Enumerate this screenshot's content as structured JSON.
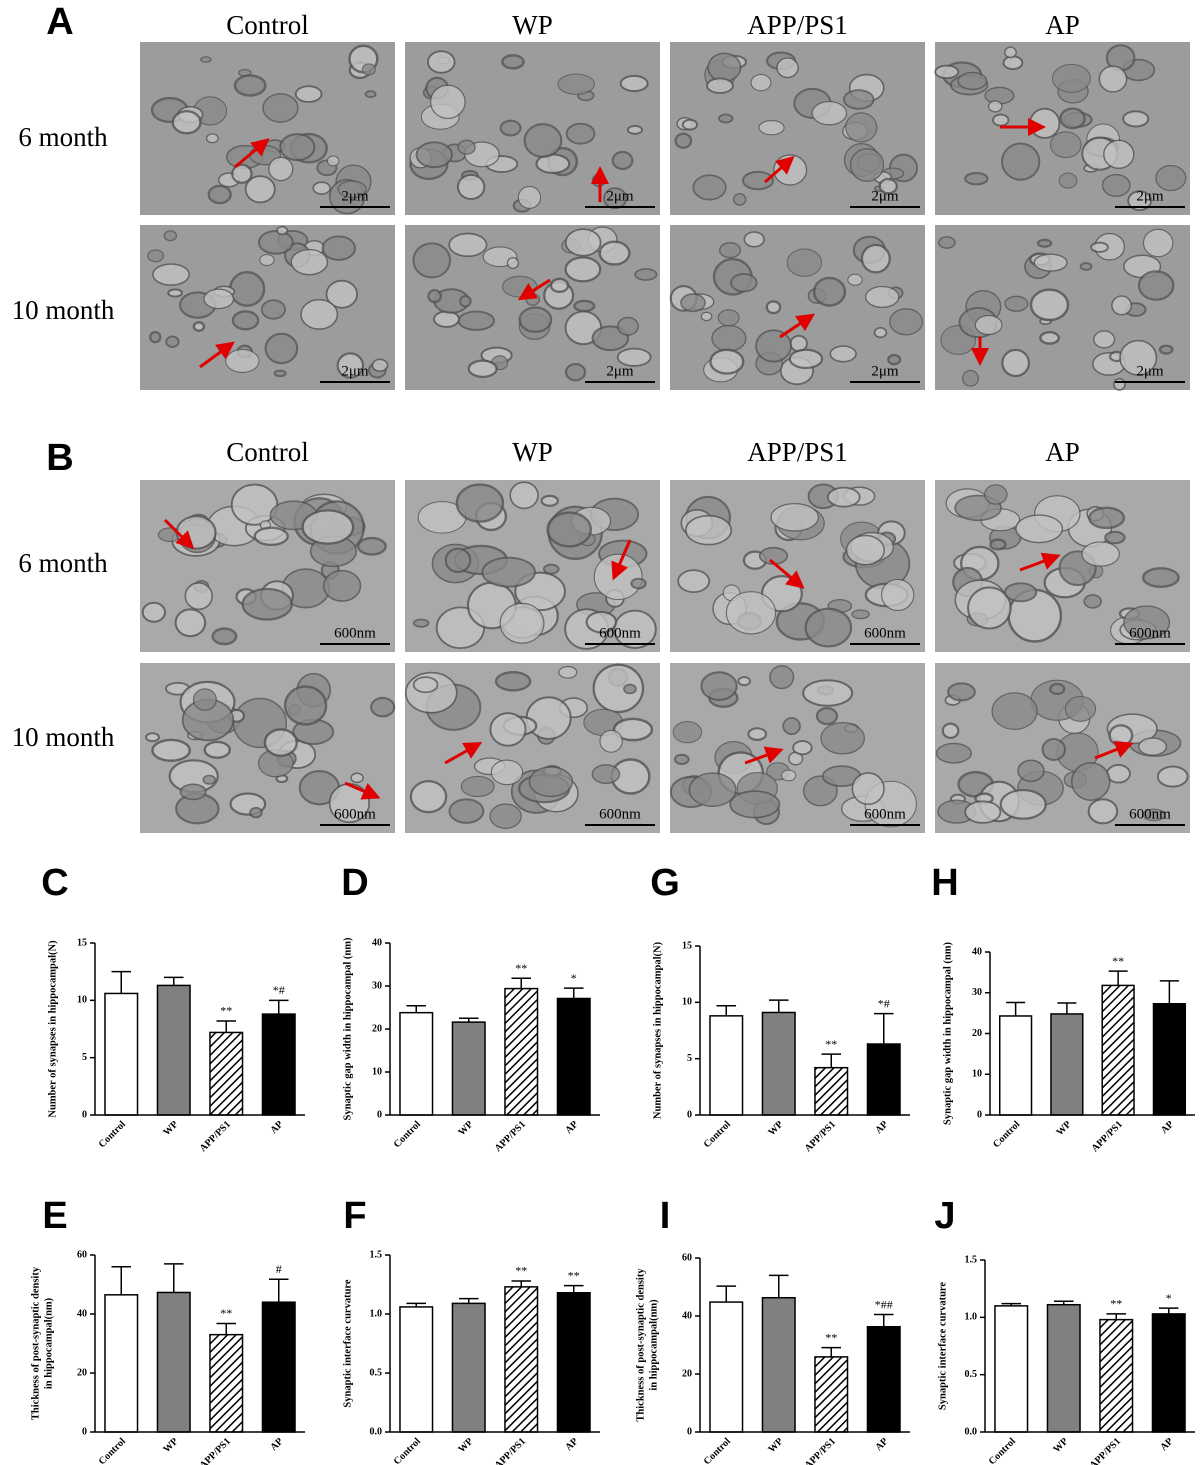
{
  "micrographs": [
    {
      "letter": "A",
      "columns": [
        "Control",
        "WP",
        "APP/PS1",
        "AP"
      ],
      "rows": [
        "6 month",
        "10 month"
      ],
      "scale_bar": "2μm"
    },
    {
      "letter": "B",
      "columns": [
        "Control",
        "WP",
        "APP/PS1",
        "AP"
      ],
      "rows": [
        "6 month",
        "10 month"
      ],
      "scale_bar": "600nm"
    }
  ],
  "chart_data": [
    {
      "type": "bar",
      "letter": "C",
      "y_label": [
        "Number of synapses in hippocampal(N)"
      ],
      "categories": [
        "Control",
        "WP",
        "APP/PS1",
        "AP"
      ],
      "values": [
        10.6,
        11.3,
        7.2,
        8.8
      ],
      "errors": [
        1.9,
        0.7,
        1.0,
        1.2
      ],
      "annotations": [
        null,
        null,
        "**",
        "*#"
      ],
      "fills": [
        "white",
        "gray",
        "hatched",
        "black"
      ],
      "ylim": [
        0,
        15
      ],
      "yticks": [
        0,
        5,
        10,
        15
      ]
    },
    {
      "type": "bar",
      "letter": "D",
      "y_label": [
        "Synaptic gap width in hippocampal (nm)"
      ],
      "categories": [
        "Control",
        "WP",
        "APP/PS1",
        "AP"
      ],
      "values": [
        23.8,
        21.6,
        29.4,
        27.1
      ],
      "errors": [
        1.6,
        0.9,
        2.4,
        2.4
      ],
      "annotations": [
        null,
        null,
        "**",
        "*"
      ],
      "fills": [
        "white",
        "gray",
        "hatched",
        "black"
      ],
      "ylim": [
        0,
        40
      ],
      "yticks": [
        0,
        10,
        20,
        30,
        40
      ]
    },
    {
      "type": "bar",
      "letter": "G",
      "y_label": [
        "Number of synapses in hippocampal(N)"
      ],
      "categories": [
        "Control",
        "WP",
        "APP/PS1",
        "AP"
      ],
      "values": [
        8.8,
        9.1,
        4.2,
        6.3
      ],
      "errors": [
        0.9,
        1.1,
        1.2,
        2.7
      ],
      "annotations": [
        null,
        null,
        "**",
        "*#"
      ],
      "fills": [
        "white",
        "gray",
        "hatched",
        "black"
      ],
      "ylim": [
        0,
        15
      ],
      "yticks": [
        0,
        5,
        10,
        15
      ]
    },
    {
      "type": "bar",
      "letter": "H",
      "y_label": [
        "Synaptic gap width in hippocampal (nm)"
      ],
      "categories": [
        "Control",
        "WP",
        "APP/PS1",
        "AP"
      ],
      "values": [
        24.3,
        24.8,
        31.8,
        27.3
      ],
      "errors": [
        3.3,
        2.7,
        3.5,
        5.6
      ],
      "annotations": [
        null,
        null,
        "**",
        null
      ],
      "fills": [
        "white",
        "gray",
        "hatched",
        "black"
      ],
      "ylim": [
        0,
        40
      ],
      "yticks": [
        0,
        10,
        20,
        30,
        40
      ]
    },
    {
      "type": "bar",
      "letter": "E",
      "y_label": [
        "Thickness of post-synaptic density",
        "in hippocampal(nm)"
      ],
      "categories": [
        "Control",
        "WP",
        "APP/PS1",
        "AP"
      ],
      "values": [
        46.5,
        47.3,
        33.0,
        44.0
      ],
      "errors": [
        9.5,
        9.7,
        3.8,
        7.8
      ],
      "annotations": [
        null,
        null,
        "**",
        "#"
      ],
      "fills": [
        "white",
        "gray",
        "hatched",
        "black"
      ],
      "ylim": [
        0,
        60
      ],
      "yticks": [
        0,
        20,
        40,
        60
      ]
    },
    {
      "type": "bar",
      "letter": "F",
      "y_label": [
        "Synaptic interface curvature"
      ],
      "categories": [
        "Control",
        "WP",
        "APP/PS1",
        "AP"
      ],
      "values": [
        1.06,
        1.09,
        1.23,
        1.18
      ],
      "errors": [
        0.03,
        0.04,
        0.05,
        0.06
      ],
      "annotations": [
        null,
        null,
        "**",
        "**"
      ],
      "fills": [
        "white",
        "gray",
        "hatched",
        "black"
      ],
      "ylim": [
        0,
        1.5
      ],
      "yticks": [
        {
          "value": 0,
          "label": "0.0"
        },
        0.5,
        {
          "value": 1,
          "label": "1.0"
        },
        1.5
      ]
    },
    {
      "type": "bar",
      "letter": "I",
      "y_label": [
        "Thickness of post-synaptic density",
        "in hippocampal(nm)"
      ],
      "categories": [
        "Control",
        "WP",
        "APP/PS1",
        "AP"
      ],
      "values": [
        44.8,
        46.3,
        25.9,
        36.3
      ],
      "errors": [
        5.5,
        7.7,
        3.2,
        4.2
      ],
      "annotations": [
        null,
        null,
        "**",
        "*##"
      ],
      "fills": [
        "white",
        "gray",
        "hatched",
        "black"
      ],
      "ylim": [
        0,
        60
      ],
      "yticks": [
        0,
        20,
        40,
        60
      ]
    },
    {
      "type": "bar",
      "letter": "J",
      "y_label": [
        "Synaptic interface curvature"
      ],
      "categories": [
        "Control",
        "WP",
        "APP/PS1",
        "AP"
      ],
      "values": [
        1.1,
        1.11,
        0.98,
        1.03
      ],
      "errors": [
        0.02,
        0.03,
        0.05,
        0.05
      ],
      "annotations": [
        null,
        null,
        "**",
        "*"
      ],
      "fills": [
        "white",
        "gray",
        "hatched",
        "black"
      ],
      "ylim": [
        0,
        1.5
      ],
      "yticks": [
        {
          "value": 0,
          "label": "0.0"
        },
        0.5,
        {
          "value": 1,
          "label": "1.0"
        },
        1.5
      ]
    }
  ]
}
